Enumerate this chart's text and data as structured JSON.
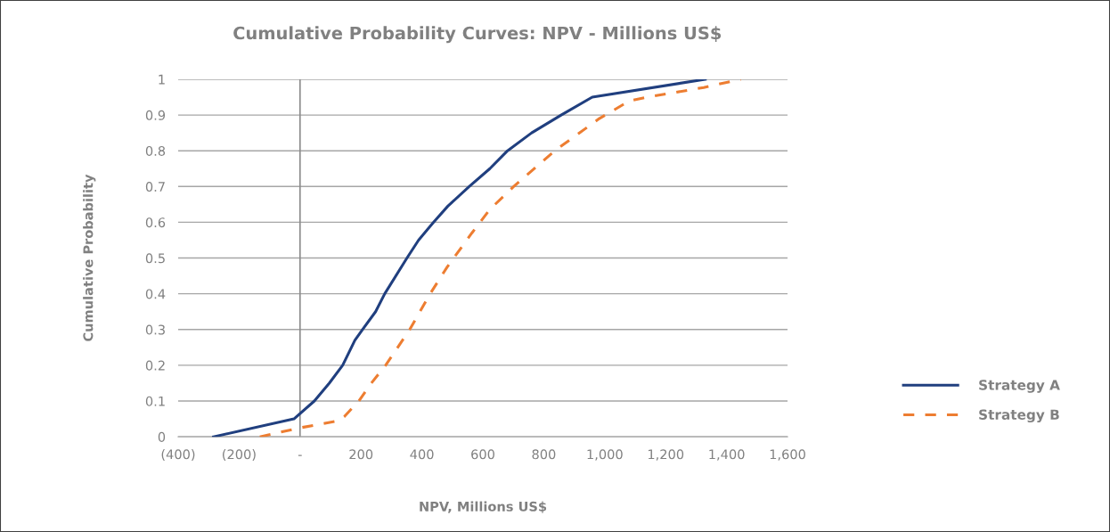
{
  "chart_data": {
    "type": "line",
    "title": "Cumulative Probability Curves: NPV - Millions US$",
    "xlabel": "NPV, Millions US$",
    "ylabel": "Cumulative Probability",
    "series": [
      {
        "name": "Strategy A",
        "color": "#203f7f",
        "line_style": "solid",
        "x": [
          -284,
          -20,
          47,
          96,
          140,
          180,
          205,
          248,
          278,
          351,
          389,
          438,
          485,
          555,
          623,
          681,
          760,
          857,
          959,
          1330
        ],
        "values": [
          0,
          0.05,
          0.1,
          0.15,
          0.2,
          0.27,
          0.3,
          0.35,
          0.4,
          0.5,
          0.55,
          0.6,
          0.645,
          0.7,
          0.75,
          0.8,
          0.85,
          0.9,
          0.95,
          1
        ]
      },
      {
        "name": "Strategy B",
        "color": "#ed7d31",
        "line_style": "dashed",
        "x": [
          -132,
          0,
          126,
          146,
          193,
          234,
          281,
          360,
          427,
          483,
          564,
          623,
          701,
          836,
          982,
          1082,
          1140,
          1325,
          1447
        ],
        "values": [
          0,
          0.025,
          0.045,
          0.057,
          0.1,
          0.15,
          0.2,
          0.3,
          0.4,
          0.475,
          0.57,
          0.636,
          0.7,
          0.8,
          0.89,
          0.94,
          0.95,
          0.977,
          1
        ]
      }
    ],
    "xlim": [
      -400,
      1600
    ],
    "xticks": [
      {
        "value": -400,
        "label": "(400)"
      },
      {
        "value": -200,
        "label": "(200)"
      },
      {
        "value": 0,
        "label": "-"
      },
      {
        "value": 200,
        "label": "200"
      },
      {
        "value": 400,
        "label": "400"
      },
      {
        "value": 600,
        "label": "600"
      },
      {
        "value": 800,
        "label": "800"
      },
      {
        "value": 1000,
        "label": "1,000"
      },
      {
        "value": 1200,
        "label": "1,200"
      },
      {
        "value": 1400,
        "label": "1,400"
      },
      {
        "value": 1600,
        "label": "1,600"
      }
    ],
    "ylim": [
      0,
      1
    ],
    "yticks": [
      0,
      0.1,
      0.2,
      0.3,
      0.4,
      0.5,
      0.6,
      0.7,
      0.8,
      0.9,
      1
    ],
    "ref_lines": [
      {
        "axis": "x",
        "value": 0,
        "color": "#8c8c8c"
      }
    ],
    "grid": "y",
    "legend": "right",
    "marker": "none"
  }
}
